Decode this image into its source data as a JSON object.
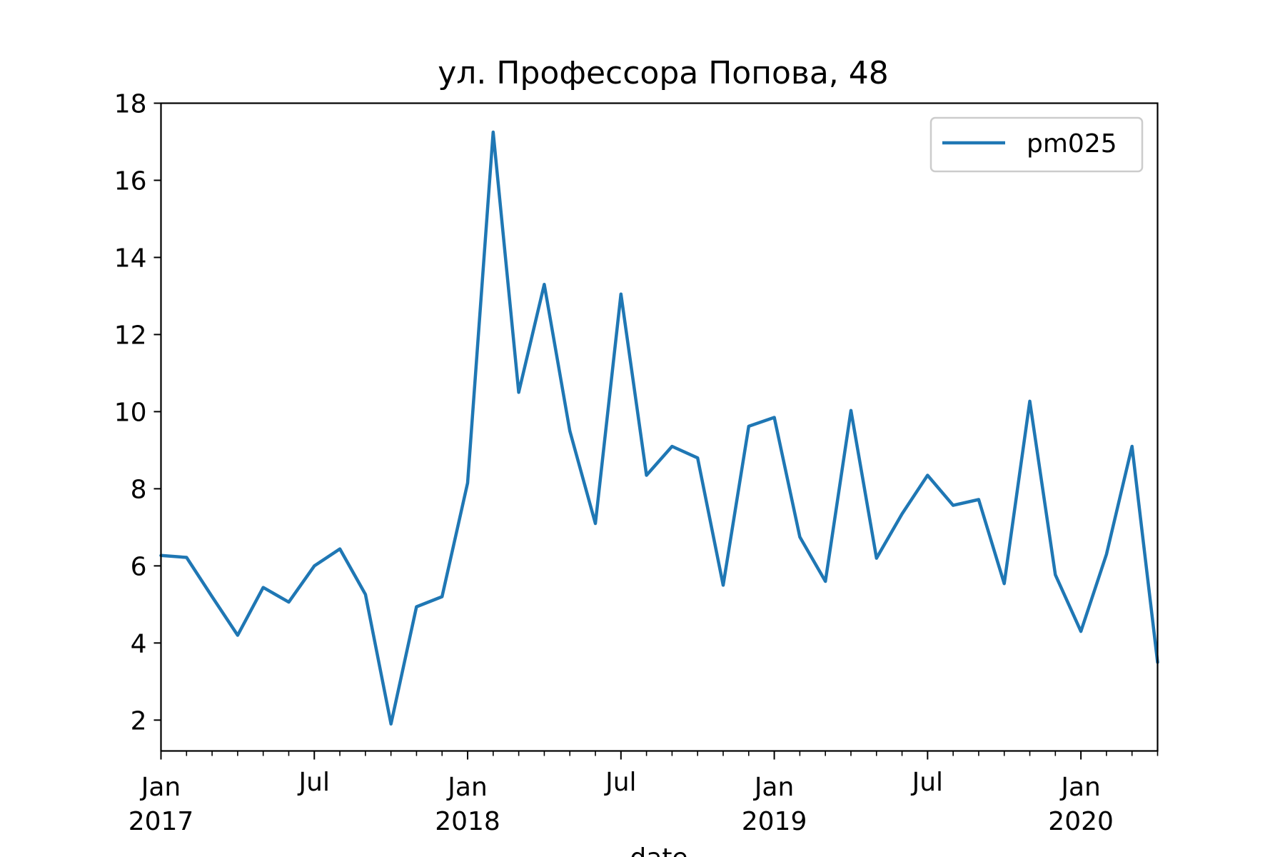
{
  "chart_data": {
    "type": "line",
    "title": "ул. Профессора Попова, 48",
    "xlabel": "date",
    "ylabel": "",
    "ylim": [
      1.2,
      18
    ],
    "xlim": [
      "2017-01",
      "2020-04"
    ],
    "grid": false,
    "legend_position": "top-right",
    "y_ticks": [
      2,
      4,
      6,
      8,
      10,
      12,
      14,
      16,
      18
    ],
    "x_major_ticks": [
      {
        "date": "2017-01",
        "month": "Jan",
        "year": "2017"
      },
      {
        "date": "2017-07",
        "month": "Jul",
        "year": ""
      },
      {
        "date": "2018-01",
        "month": "Jan",
        "year": "2018"
      },
      {
        "date": "2018-07",
        "month": "Jul",
        "year": ""
      },
      {
        "date": "2019-01",
        "month": "Jan",
        "year": "2019"
      },
      {
        "date": "2019-07",
        "month": "Jul",
        "year": ""
      },
      {
        "date": "2020-01",
        "month": "Jan",
        "year": "2020"
      }
    ],
    "x": [
      "2017-01",
      "2017-02",
      "2017-03",
      "2017-04",
      "2017-05",
      "2017-06",
      "2017-07",
      "2017-08",
      "2017-09",
      "2017-10",
      "2017-11",
      "2017-12",
      "2018-01",
      "2018-02",
      "2018-03",
      "2018-04",
      "2018-05",
      "2018-06",
      "2018-07",
      "2018-08",
      "2018-09",
      "2018-10",
      "2018-11",
      "2018-12",
      "2019-01",
      "2019-02",
      "2019-03",
      "2019-04",
      "2019-05",
      "2019-06",
      "2019-07",
      "2019-08",
      "2019-09",
      "2019-10",
      "2019-11",
      "2019-12",
      "2020-01",
      "2020-02",
      "2020-03",
      "2020-04"
    ],
    "series": [
      {
        "name": "pm025",
        "color": "#1f77b4",
        "values": [
          6.27,
          6.22,
          5.2,
          4.2,
          5.44,
          5.06,
          6.0,
          6.44,
          5.26,
          1.9,
          4.94,
          5.2,
          8.15,
          17.25,
          10.5,
          13.3,
          9.5,
          7.1,
          13.05,
          8.35,
          9.1,
          8.8,
          5.5,
          9.62,
          9.85,
          6.75,
          5.6,
          10.03,
          6.2,
          7.35,
          8.35,
          7.57,
          7.72,
          5.54,
          10.27,
          5.77,
          4.3,
          6.3,
          9.1,
          3.5
        ]
      }
    ]
  }
}
